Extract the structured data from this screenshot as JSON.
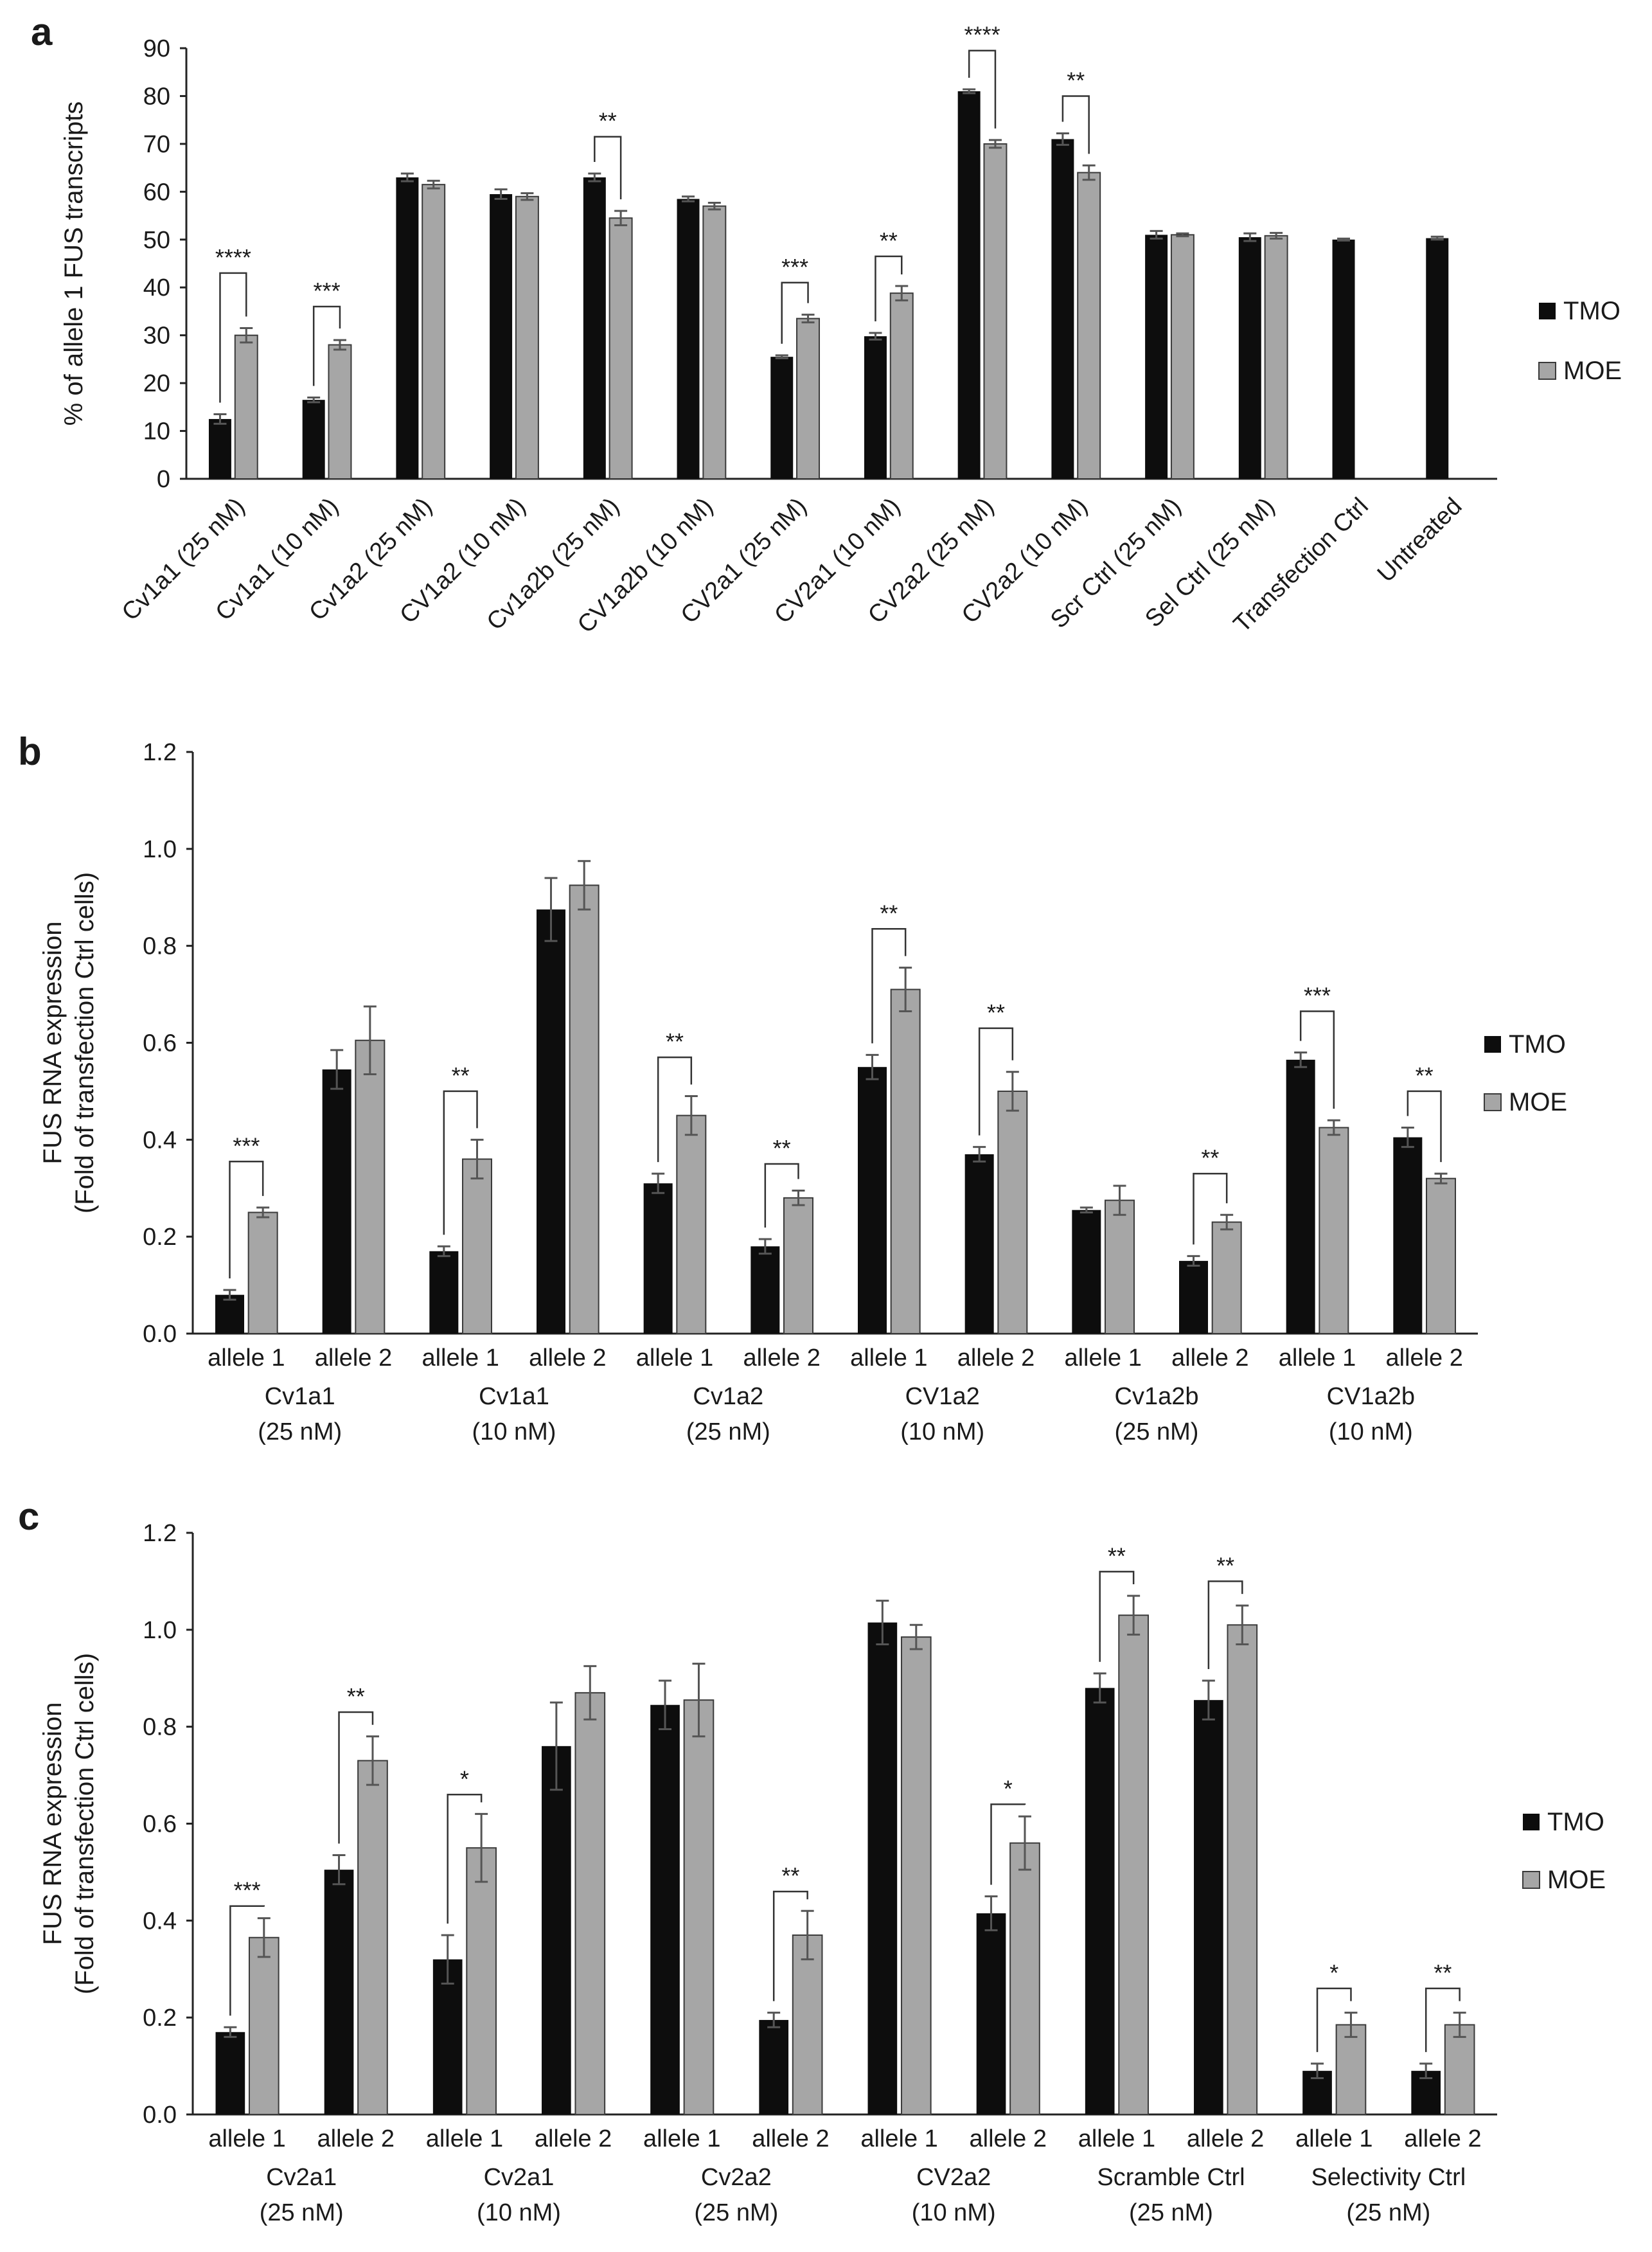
{
  "chart_data": [
    {
      "panel": "a",
      "type": "bar",
      "ylabel": "% of allele 1 FUS transcripts",
      "ylim": [
        0,
        90
      ],
      "yticks": [
        "0",
        "10",
        "20",
        "30",
        "40",
        "50",
        "60",
        "70",
        "80",
        "90"
      ],
      "legend": [
        "TMO",
        "MOE"
      ],
      "legend_position": "right",
      "categories": [
        "Cv1a1 (25 nM)",
        "Cv1a1 (10 nM)",
        "Cv1a2 (25 nM)",
        "CV1a2 (10 nM)",
        "Cv1a2b (25 nM)",
        "CV1a2b (10 nM)",
        "CV2a1 (25 nM)",
        "CV2a1 (10 nM)",
        "CV2a2 (25 nM)",
        "CV2a2 (10 nM)",
        "Scr Ctrl (25 nM)",
        "Sel Ctrl (25 nM)",
        "Transfection Ctrl",
        "Untreated"
      ],
      "series": [
        {
          "name": "TMO",
          "color": "#0d0d0d",
          "values": [
            12.5,
            16.5,
            63,
            59.5,
            63,
            58.5,
            25.5,
            29.8,
            81,
            71,
            51,
            50.5,
            50,
            50.3
          ],
          "errors": [
            1,
            0.5,
            0.8,
            1,
            0.8,
            0.5,
            0.3,
            0.7,
            0.4,
            1.2,
            0.8,
            0.8,
            0.2,
            0.3
          ]
        },
        {
          "name": "MOE",
          "color": "#a6a6a6",
          "values": [
            30,
            28,
            61.5,
            59,
            54.5,
            57,
            33.5,
            38.8,
            70,
            64,
            51,
            50.8,
            null,
            null
          ],
          "errors": [
            1.5,
            1,
            0.8,
            0.7,
            1.5,
            0.7,
            0.8,
            1.5,
            0.8,
            1.5,
            0.3,
            0.6,
            null,
            null
          ]
        }
      ],
      "significance": [
        {
          "group": 0,
          "label": "****",
          "y": 43
        },
        {
          "group": 1,
          "label": "***",
          "y": 36
        },
        {
          "group": 4,
          "label": "**",
          "y": 71.5
        },
        {
          "group": 6,
          "label": "***",
          "y": 41
        },
        {
          "group": 7,
          "label": "**",
          "y": 46.5
        },
        {
          "group": 8,
          "label": "****",
          "y": 89.5
        },
        {
          "group": 9,
          "label": "**",
          "y": 80
        }
      ]
    },
    {
      "panel": "b",
      "type": "bar",
      "ylabel": "FUS RNA expression",
      "ylabel2": "(Fold of transfection Ctrl cells)",
      "ylim": [
        0,
        1.2
      ],
      "yticks": [
        "0.0",
        "0.2",
        "0.4",
        "0.6",
        "0.8",
        "1.0",
        "1.2"
      ],
      "legend": [
        "TMO",
        "MOE"
      ],
      "legend_position": "right",
      "categories": [
        "allele 1",
        "allele 2",
        "allele 1",
        "allele 2",
        "allele 1",
        "allele 2",
        "allele 1",
        "allele 2",
        "allele 1",
        "allele 2",
        "allele 1",
        "allele 2"
      ],
      "groups": [
        {
          "name": "Cv1a1",
          "conc": "(25 nM)"
        },
        {
          "name": "Cv1a1",
          "conc": "(10 nM)"
        },
        {
          "name": "Cv1a2",
          "conc": "(25 nM)"
        },
        {
          "name": "CV1a2",
          "conc": "(10 nM)"
        },
        {
          "name": "Cv1a2b",
          "conc": "(25 nM)"
        },
        {
          "name": "CV1a2b",
          "conc": "(10 nM)"
        }
      ],
      "series": [
        {
          "name": "TMO",
          "color": "#0d0d0d",
          "values": [
            0.08,
            0.545,
            0.17,
            0.875,
            0.31,
            0.18,
            0.55,
            0.37,
            0.255,
            0.15,
            0.565,
            0.405
          ],
          "errors": [
            0.01,
            0.04,
            0.01,
            0.065,
            0.02,
            0.015,
            0.025,
            0.015,
            0.005,
            0.01,
            0.015,
            0.02
          ]
        },
        {
          "name": "MOE",
          "color": "#a6a6a6",
          "values": [
            0.25,
            0.605,
            0.36,
            0.925,
            0.45,
            0.28,
            0.71,
            0.5,
            0.275,
            0.23,
            0.425,
            0.32
          ],
          "errors": [
            0.01,
            0.07,
            0.04,
            0.05,
            0.04,
            0.015,
            0.045,
            0.04,
            0.03,
            0.015,
            0.015,
            0.01
          ]
        }
      ],
      "significance": [
        {
          "group": 0,
          "label": "***",
          "y": 0.355
        },
        {
          "group": 2,
          "label": "**",
          "y": 0.5
        },
        {
          "group": 4,
          "label": "**",
          "y": 0.57
        },
        {
          "group": 5,
          "label": "**",
          "y": 0.35
        },
        {
          "group": 6,
          "label": "**",
          "y": 0.835
        },
        {
          "group": 7,
          "label": "**",
          "y": 0.63
        },
        {
          "group": 9,
          "label": "**",
          "y": 0.33
        },
        {
          "group": 10,
          "label": "***",
          "y": 0.665
        },
        {
          "group": 11,
          "label": "**",
          "y": 0.5
        }
      ]
    },
    {
      "panel": "c",
      "type": "bar",
      "ylabel": "FUS RNA expression",
      "ylabel2": "(Fold of transfection Ctrl cells)",
      "ylim": [
        0,
        1.2
      ],
      "yticks": [
        "0.0",
        "0.2",
        "0.4",
        "0.6",
        "0.8",
        "1.0",
        "1.2"
      ],
      "legend": [
        "TMO",
        "MOE"
      ],
      "legend_position": "right",
      "categories": [
        "allele 1",
        "allele 2",
        "allele 1",
        "allele 2",
        "allele 1",
        "allele 2",
        "allele 1",
        "allele 2",
        "allele 1",
        "allele 2",
        "allele 1",
        "allele 2"
      ],
      "groups": [
        {
          "name": "Cv2a1",
          "conc": "(25 nM)"
        },
        {
          "name": "Cv2a1",
          "conc": "(10 nM)"
        },
        {
          "name": "Cv2a2",
          "conc": "(25 nM)"
        },
        {
          "name": "CV2a2",
          "conc": "(10 nM)"
        },
        {
          "name": "Scramble Ctrl",
          "conc": "(25 nM)"
        },
        {
          "name": "Selectivity Ctrl",
          "conc": "(25 nM)"
        }
      ],
      "series": [
        {
          "name": "TMO",
          "color": "#0d0d0d",
          "values": [
            0.17,
            0.505,
            0.32,
            0.76,
            0.845,
            0.195,
            1.015,
            0.415,
            0.88,
            0.855,
            0.09,
            0.09
          ],
          "errors": [
            0.01,
            0.03,
            0.05,
            0.09,
            0.05,
            0.015,
            0.045,
            0.035,
            0.03,
            0.04,
            0.015,
            0.015
          ]
        },
        {
          "name": "MOE",
          "color": "#a6a6a6",
          "values": [
            0.365,
            0.73,
            0.55,
            0.87,
            0.855,
            0.37,
            0.985,
            0.56,
            1.03,
            1.01,
            0.185,
            0.185
          ],
          "errors": [
            0.04,
            0.05,
            0.07,
            0.055,
            0.075,
            0.05,
            0.025,
            0.055,
            0.04,
            0.04,
            0.025,
            0.025
          ]
        }
      ],
      "significance": [
        {
          "group": 0,
          "label": "***",
          "y": 0.43
        },
        {
          "group": 1,
          "label": "**",
          "y": 0.83
        },
        {
          "group": 2,
          "label": "*",
          "y": 0.66
        },
        {
          "group": 5,
          "label": "**",
          "y": 0.46
        },
        {
          "group": 7,
          "label": "*",
          "y": 0.64
        },
        {
          "group": 8,
          "label": "**",
          "y": 1.12
        },
        {
          "group": 9,
          "label": "**",
          "y": 1.1
        },
        {
          "group": 10,
          "label": "*",
          "y": 0.26
        },
        {
          "group": 11,
          "label": "**",
          "y": 0.26
        }
      ]
    }
  ]
}
